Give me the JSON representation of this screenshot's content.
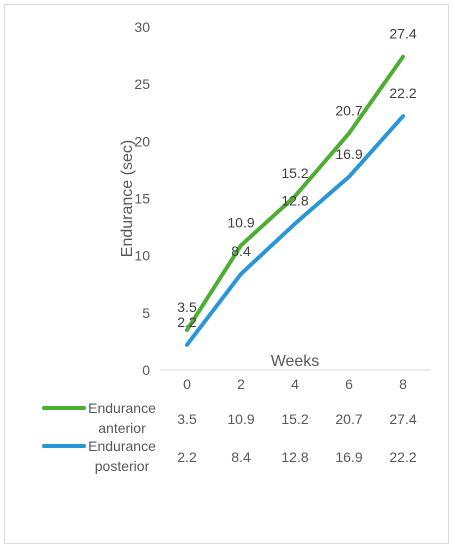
{
  "chart_data": {
    "type": "line",
    "xlabel": "Weeks",
    "ylabel": "Endurance (sec)",
    "x": [
      "0",
      "2",
      "4",
      "6",
      "8"
    ],
    "ylim": [
      0,
      30
    ],
    "yticks": [
      "0",
      "5",
      "10",
      "15",
      "20",
      "25",
      "30"
    ],
    "grid": false,
    "legend": "data table below the x axis",
    "series": [
      {
        "name_lines": [
          "Endurance",
          "anterior"
        ],
        "color": "#4caf33",
        "values": [
          3.5,
          10.9,
          15.2,
          20.7,
          27.4
        ]
      },
      {
        "name_lines": [
          "Endurance",
          "posterior"
        ],
        "color": "#2a96d6",
        "values": [
          2.2,
          8.4,
          12.8,
          16.9,
          22.2
        ]
      }
    ]
  }
}
